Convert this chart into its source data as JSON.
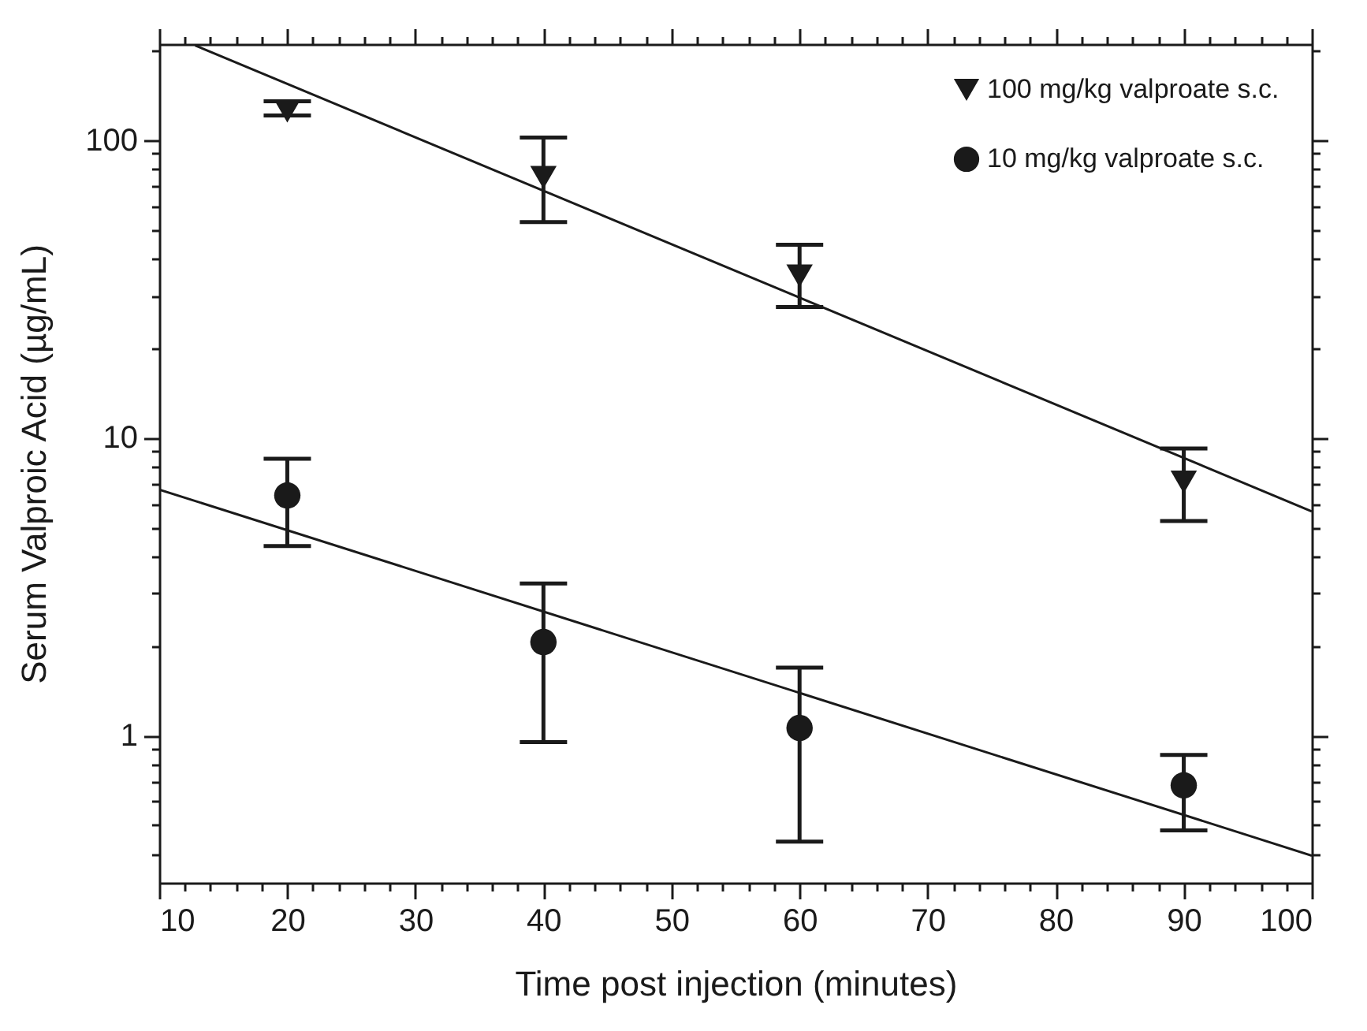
{
  "chart_data": {
    "type": "scatter",
    "xlabel": "Time post injection (minutes)",
    "ylabel": "Serum Valproic Acid (µg/mL)",
    "x": [
      20,
      40,
      60,
      90
    ],
    "series": [
      {
        "name": "100 mg/kg valproate s.c.",
        "color": "#1a1a1a",
        "marker": "triangle",
        "values": [
          125,
          75,
          35,
          7.1
        ],
        "errors": [
          [
            121,
            135
          ],
          [
            53,
            102
          ],
          [
            27.5,
            44.5
          ],
          [
            5.25,
            9.2
          ]
        ]
      },
      {
        "name": "10 mg/kg valproate s.c.",
        "color": "#1a1a1a",
        "marker": "circle",
        "values": [
          6.4,
          2.06,
          1.06,
          0.68
        ],
        "errors": [
          [
            4.33,
            8.5
          ],
          [
            0.95,
            3.24
          ],
          [
            0.44,
            1.69
          ],
          [
            0.48,
            0.86
          ]
        ]
      },
      {
        "type": "line",
        "color": "#1a1a1a",
        "x": [
          12.8,
          100
        ],
        "values": [
          208,
          5.66
        ]
      },
      {
        "type": "line",
        "color": "#1a1a1a",
        "x": [
          10,
          100
        ],
        "values": [
          6.7,
          0.395
        ]
      }
    ],
    "log": "y",
    "xlim": [
      10,
      100
    ],
    "ylim": [
      0.32,
      210
    ],
    "xticks": [
      10,
      {
        "value": 12,
        "label": null
      },
      {
        "value": 14,
        "label": null
      },
      {
        "value": 16,
        "label": null
      },
      {
        "value": 18,
        "label": null
      },
      20,
      {
        "value": 22,
        "label": null
      },
      {
        "value": 24,
        "label": null
      },
      {
        "value": 26,
        "label": null
      },
      {
        "value": 28,
        "label": null
      },
      30,
      {
        "value": 32,
        "label": null
      },
      {
        "value": 34,
        "label": null
      },
      {
        "value": 36,
        "label": null
      },
      {
        "value": 38,
        "label": null
      },
      40,
      {
        "value": 42,
        "label": null
      },
      {
        "value": 44,
        "label": null
      },
      {
        "value": 46,
        "label": null
      },
      {
        "value": 48,
        "label": null
      },
      50,
      {
        "value": 52,
        "label": null
      },
      {
        "value": 54,
        "label": null
      },
      {
        "value": 56,
        "label": null
      },
      {
        "value": 58,
        "label": null
      },
      60,
      {
        "value": 62,
        "label": null
      },
      {
        "value": 64,
        "label": null
      },
      {
        "value": 66,
        "label": null
      },
      {
        "value": 68,
        "label": null
      },
      70,
      {
        "value": 72,
        "label": null
      },
      {
        "value": 74,
        "label": null
      },
      {
        "value": 76,
        "label": null
      },
      {
        "value": 78,
        "label": null
      },
      80,
      {
        "value": 82,
        "label": null
      },
      {
        "value": 84,
        "label": null
      },
      {
        "value": 86,
        "label": null
      },
      {
        "value": 88,
        "label": null
      },
      90,
      {
        "value": 92,
        "label": null
      },
      {
        "value": 94,
        "label": null
      },
      {
        "value": 96,
        "label": null
      },
      {
        "value": 98,
        "label": null
      },
      100
    ],
    "yticks": [
      {
        "value": 0.4,
        "label": null
      },
      {
        "value": 0.5,
        "label": null
      },
      {
        "value": 0.6,
        "label": null
      },
      {
        "value": 0.7,
        "label": null
      },
      {
        "value": 0.8,
        "label": null
      },
      {
        "value": 0.9,
        "label": null
      },
      1,
      {
        "value": 2,
        "label": null
      },
      {
        "value": 3,
        "label": null
      },
      {
        "value": 4,
        "label": null
      },
      {
        "value": 5,
        "label": null
      },
      {
        "value": 6,
        "label": null
      },
      {
        "value": 7,
        "label": null
      },
      {
        "value": 8,
        "label": null
      },
      {
        "value": 9,
        "label": null
      },
      10,
      {
        "value": 20,
        "label": null
      },
      {
        "value": 30,
        "label": null
      },
      {
        "value": 40,
        "label": null
      },
      {
        "value": 50,
        "label": null
      },
      {
        "value": 60,
        "label": null
      },
      {
        "value": 70,
        "label": null
      },
      {
        "value": 80,
        "label": null
      },
      {
        "value": 90,
        "label": null
      },
      100,
      {
        "value": 200,
        "label": null
      }
    ],
    "legend": "top right",
    "grid": false
  }
}
